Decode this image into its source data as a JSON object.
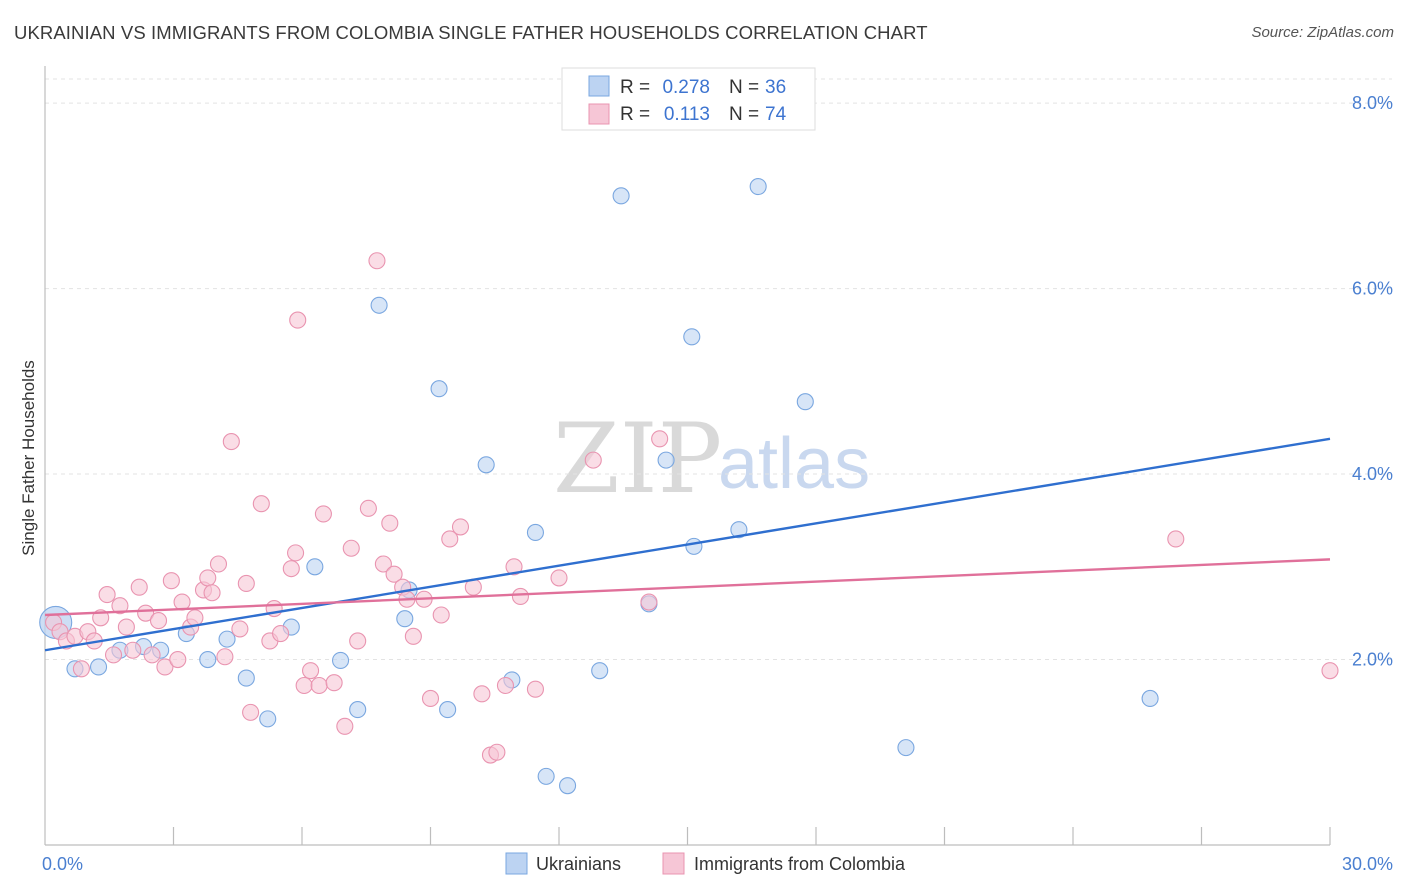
{
  "header": {
    "title": "UKRAINIAN VS IMMIGRANTS FROM COLOMBIA SINGLE FATHER HOUSEHOLDS CORRELATION CHART",
    "source": "Source: ZipAtlas.com"
  },
  "watermark": {
    "zip": "ZIP",
    "atlas": "atlas"
  },
  "chart_data": {
    "type": "scatter",
    "xlabel": "",
    "ylabel": "Single Father Households",
    "xlim": [
      0,
      30
    ],
    "ylim": [
      0,
      8.4
    ],
    "x_tick_labels": {
      "min": "0.0%",
      "max": "30.0%"
    },
    "y_ticks": [
      2,
      4,
      6,
      8
    ],
    "y_tick_labels": [
      "2.0%",
      "4.0%",
      "6.0%",
      "8.0%"
    ],
    "legend": {
      "r_label": "R =",
      "n_label": "N =",
      "entries": [
        {
          "r": "0.278",
          "n": "36"
        },
        {
          "r": "0.113",
          "n": "74"
        }
      ]
    },
    "series": [
      {
        "name": "Ukrainians",
        "color": "#7aa7e0",
        "fill": "#bcd3f2",
        "line_color": "#2f6fcf",
        "trend": {
          "x0": 0,
          "y0": 2.1,
          "x1": 30,
          "y1": 4.38
        },
        "points": [
          [
            0.25,
            2.4
          ],
          [
            0.7,
            1.9
          ],
          [
            1.25,
            1.92
          ],
          [
            1.75,
            2.1
          ],
          [
            2.3,
            2.14
          ],
          [
            2.7,
            2.1
          ],
          [
            3.3,
            2.28
          ],
          [
            3.8,
            2.0
          ],
          [
            4.25,
            2.22
          ],
          [
            4.7,
            1.8
          ],
          [
            5.2,
            1.36
          ],
          [
            5.75,
            2.35
          ],
          [
            6.3,
            3.0
          ],
          [
            6.9,
            1.99
          ],
          [
            7.3,
            1.46
          ],
          [
            7.8,
            5.82
          ],
          [
            8.5,
            2.75
          ],
          [
            8.4,
            2.44
          ],
          [
            9.2,
            4.92
          ],
          [
            9.4,
            1.46
          ],
          [
            10.3,
            4.1
          ],
          [
            10.9,
            1.78
          ],
          [
            11.45,
            3.37
          ],
          [
            11.7,
            0.74
          ],
          [
            12.2,
            0.64
          ],
          [
            12.95,
            1.88
          ],
          [
            13.45,
            7.0
          ],
          [
            14.1,
            2.6
          ],
          [
            14.5,
            4.15
          ],
          [
            15.15,
            3.22
          ],
          [
            15.1,
            5.48
          ],
          [
            16.2,
            3.4
          ],
          [
            16.65,
            7.1
          ],
          [
            17.75,
            4.78
          ],
          [
            20.1,
            1.05
          ],
          [
            25.8,
            1.58
          ]
        ]
      },
      {
        "name": "Immigrants from Colombia",
        "color": "#e994b0",
        "fill": "#f6c6d6",
        "line_color": "#e0709a",
        "trend": {
          "x0": 0,
          "y0": 2.48,
          "x1": 30,
          "y1": 3.08
        },
        "points": [
          [
            0.2,
            2.4
          ],
          [
            0.35,
            2.3
          ],
          [
            0.5,
            2.2
          ],
          [
            0.7,
            2.25
          ],
          [
            0.85,
            1.9
          ],
          [
            1.0,
            2.3
          ],
          [
            1.15,
            2.2
          ],
          [
            1.3,
            2.45
          ],
          [
            1.45,
            2.7
          ],
          [
            1.6,
            2.05
          ],
          [
            1.75,
            2.58
          ],
          [
            1.9,
            2.35
          ],
          [
            2.05,
            2.1
          ],
          [
            2.2,
            2.78
          ],
          [
            2.35,
            2.5
          ],
          [
            2.5,
            2.05
          ],
          [
            2.65,
            2.42
          ],
          [
            2.8,
            1.92
          ],
          [
            2.95,
            2.85
          ],
          [
            3.1,
            2.0
          ],
          [
            3.2,
            2.62
          ],
          [
            3.4,
            2.35
          ],
          [
            3.5,
            2.45
          ],
          [
            3.7,
            2.75
          ],
          [
            3.8,
            2.88
          ],
          [
            3.9,
            2.72
          ],
          [
            4.05,
            3.03
          ],
          [
            4.2,
            2.03
          ],
          [
            4.35,
            4.35
          ],
          [
            4.55,
            2.33
          ],
          [
            4.7,
            2.82
          ],
          [
            4.8,
            1.43
          ],
          [
            5.05,
            3.68
          ],
          [
            5.25,
            2.2
          ],
          [
            5.35,
            2.55
          ],
          [
            5.5,
            2.28
          ],
          [
            5.75,
            2.98
          ],
          [
            5.85,
            3.15
          ],
          [
            5.9,
            5.66
          ],
          [
            6.05,
            1.72
          ],
          [
            6.2,
            1.88
          ],
          [
            6.4,
            1.72
          ],
          [
            6.5,
            3.57
          ],
          [
            6.75,
            1.75
          ],
          [
            7.0,
            1.28
          ],
          [
            7.15,
            3.2
          ],
          [
            7.3,
            2.2
          ],
          [
            7.55,
            3.63
          ],
          [
            7.75,
            6.3
          ],
          [
            7.9,
            3.03
          ],
          [
            8.05,
            3.47
          ],
          [
            8.15,
            2.92
          ],
          [
            8.35,
            2.78
          ],
          [
            8.45,
            2.65
          ],
          [
            8.6,
            2.25
          ],
          [
            8.85,
            2.65
          ],
          [
            9.0,
            1.58
          ],
          [
            9.25,
            2.48
          ],
          [
            9.45,
            3.3
          ],
          [
            9.7,
            3.43
          ],
          [
            10.0,
            2.78
          ],
          [
            10.2,
            1.63
          ],
          [
            10.4,
            0.97
          ],
          [
            10.55,
            1.0
          ],
          [
            10.75,
            1.72
          ],
          [
            10.95,
            3.0
          ],
          [
            11.1,
            2.68
          ],
          [
            11.45,
            1.68
          ],
          [
            12.0,
            2.88
          ],
          [
            12.8,
            4.15
          ],
          [
            14.35,
            4.38
          ],
          [
            14.1,
            2.62
          ],
          [
            26.4,
            3.3
          ],
          [
            30.0,
            1.88
          ]
        ]
      }
    ]
  }
}
